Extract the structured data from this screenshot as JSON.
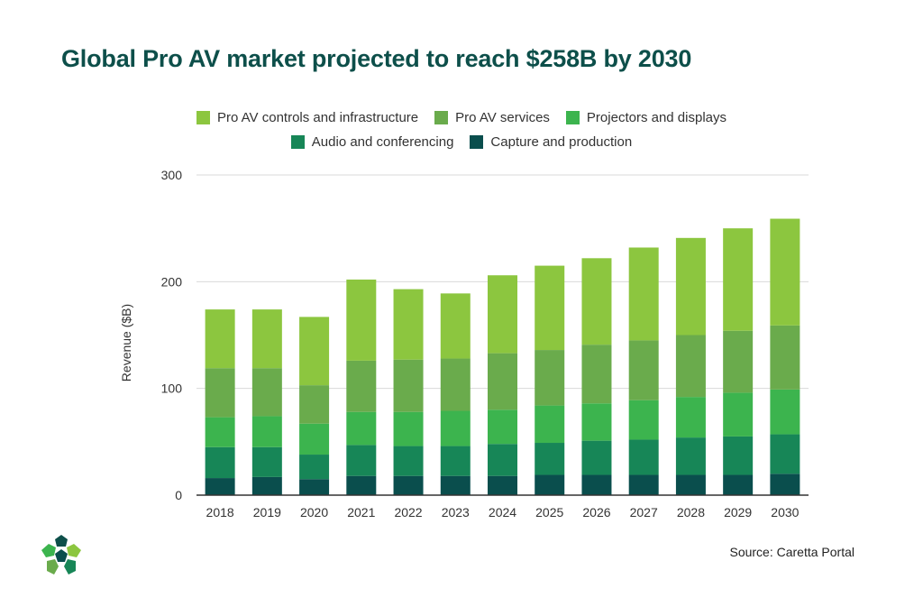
{
  "title": "Global Pro AV market projected to reach $258B by 2030",
  "source": "Source: Caretta Portal",
  "colors": {
    "title": "#0d4f4a",
    "series": [
      "#8cc63f",
      "#6aab4c",
      "#3cb44e",
      "#178657",
      "#0a4e4d"
    ],
    "axis": "#333333",
    "grid": "#d9d9d9"
  },
  "chart_data": {
    "type": "bar",
    "stacked": true,
    "title": "Global Pro AV market projected to reach $258B by 2030",
    "xlabel": "",
    "ylabel": "Revenue ($B)",
    "ylim": [
      0,
      300
    ],
    "yticks": [
      0,
      100,
      200,
      300
    ],
    "legend_position": "top-center",
    "categories": [
      "2018",
      "2019",
      "2020",
      "2021",
      "2022",
      "2023",
      "2024",
      "2025",
      "2026",
      "2027",
      "2028",
      "2029",
      "2030"
    ],
    "series": [
      {
        "name": "Capture and production",
        "values": [
          16,
          17,
          15,
          18,
          18,
          18,
          18,
          19,
          19,
          19,
          19,
          19,
          20
        ]
      },
      {
        "name": "Audio and conferencing",
        "values": [
          29,
          28,
          23,
          29,
          28,
          28,
          30,
          30,
          32,
          33,
          35,
          36,
          37
        ]
      },
      {
        "name": "Projectors and displays",
        "values": [
          28,
          29,
          29,
          31,
          32,
          33,
          32,
          35,
          35,
          37,
          38,
          41,
          42
        ]
      },
      {
        "name": "Pro AV services",
        "values": [
          46,
          45,
          36,
          48,
          49,
          49,
          53,
          52,
          55,
          56,
          58,
          58,
          60
        ]
      },
      {
        "name": "Pro AV controls and infrastructure",
        "values": [
          55,
          55,
          64,
          76,
          66,
          61,
          73,
          79,
          81,
          87,
          91,
          96,
          100
        ]
      }
    ]
  },
  "legend": {
    "row1": [
      {
        "label": "Pro AV controls and infrastructure",
        "color": "#8cc63f"
      },
      {
        "label": "Pro AV services",
        "color": "#6aab4c"
      },
      {
        "label": "Projectors and displays",
        "color": "#3cb44e"
      }
    ],
    "row2": [
      {
        "label": "Audio and conferencing",
        "color": "#178657"
      },
      {
        "label": "Capture and production",
        "color": "#0a4e4d"
      }
    ]
  },
  "logo_icon": "caretta-logo-icon"
}
